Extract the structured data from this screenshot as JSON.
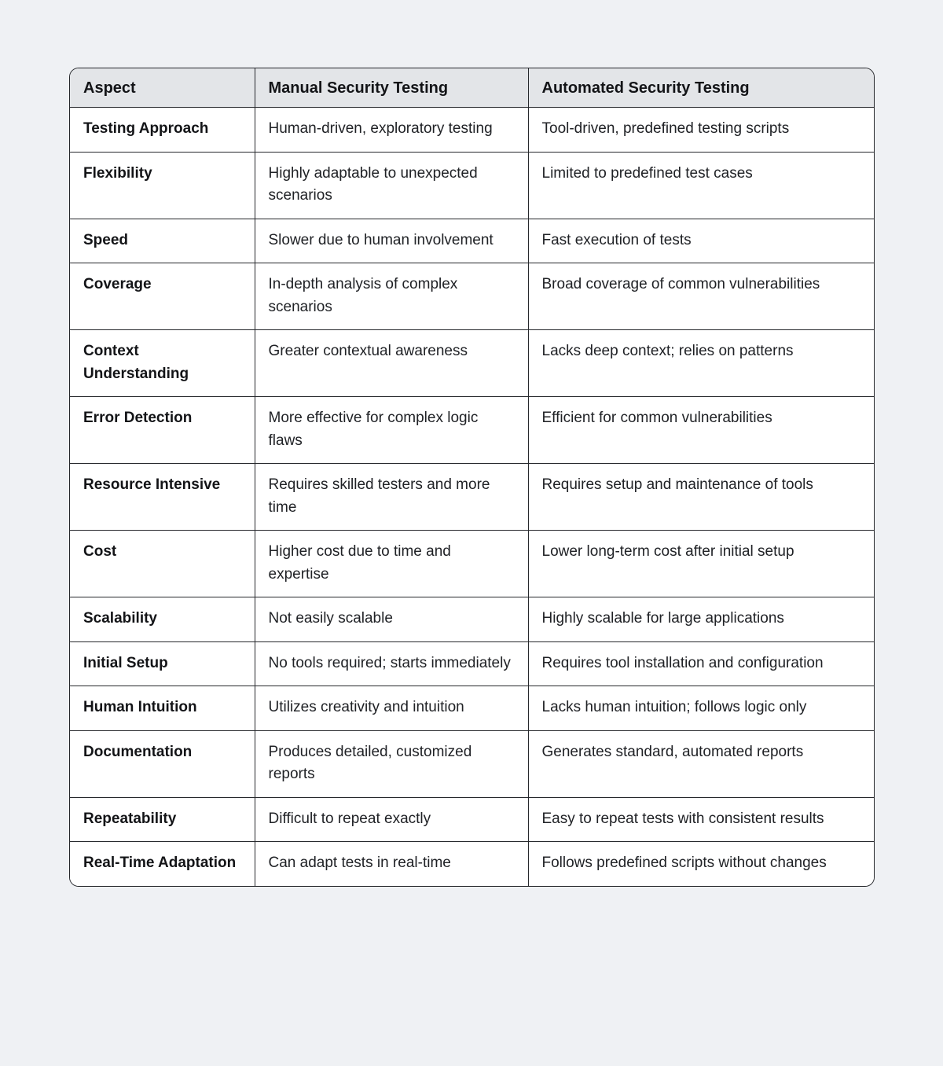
{
  "page": {
    "background_color": "#eff1f4"
  },
  "table": {
    "style": {
      "header_bg": "#e3e5e8",
      "body_bg": "#ffffff",
      "border_color": "#26282c",
      "text_color": "#202226"
    },
    "columns": [
      "Aspect",
      "Manual Security Testing",
      "Automated Security Testing"
    ],
    "rows": [
      {
        "aspect": "Testing Approach",
        "manual": "Human-driven, exploratory testing",
        "automated": "Tool-driven, predefined testing scripts"
      },
      {
        "aspect": "Flexibility",
        "manual": "Highly adaptable to unexpected scenarios",
        "automated": "Limited to predefined test cases"
      },
      {
        "aspect": "Speed",
        "manual": "Slower due to human involvement",
        "automated": "Fast execution of tests"
      },
      {
        "aspect": "Coverage",
        "manual": "In-depth analysis of complex scenarios",
        "automated": "Broad coverage of common vulnerabilities"
      },
      {
        "aspect": "Context Understanding",
        "manual": "Greater contextual awareness",
        "automated": "Lacks deep context; relies on patterns"
      },
      {
        "aspect": "Error Detection",
        "manual": "More effective for complex logic flaws",
        "automated": "Efficient for common vulnerabilities"
      },
      {
        "aspect": "Resource Intensive",
        "manual": "Requires skilled testers and more time",
        "automated": "Requires setup and maintenance of tools"
      },
      {
        "aspect": "Cost",
        "manual": "Higher cost due to time and expertise",
        "automated": "Lower long-term cost after initial setup"
      },
      {
        "aspect": "Scalability",
        "manual": "Not easily scalable",
        "automated": "Highly scalable for large applications"
      },
      {
        "aspect": "Initial Setup",
        "manual": "No tools required; starts immediately",
        "automated": "Requires tool installation and configuration"
      },
      {
        "aspect": "Human Intuition",
        "manual": "Utilizes creativity and intuition",
        "automated": "Lacks human intuition; follows logic only"
      },
      {
        "aspect": "Documentation",
        "manual": "Produces detailed, customized reports",
        "automated": "Generates standard, automated reports"
      },
      {
        "aspect": "Repeatability",
        "manual": "Difficult to repeat exactly",
        "automated": "Easy to repeat tests with consistent results"
      },
      {
        "aspect": "Real-Time Adaptation",
        "manual": "Can adapt tests in real-time",
        "automated": "Follows predefined scripts without changes"
      }
    ]
  }
}
